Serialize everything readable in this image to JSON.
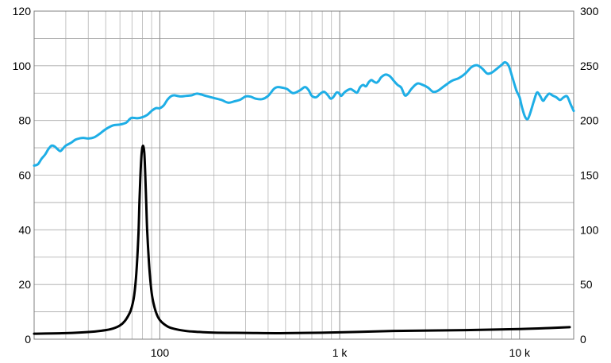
{
  "chart_data": {
    "type": "line",
    "xscale": "log",
    "xlim": [
      20,
      20000
    ],
    "ylim_left": [
      0,
      120
    ],
    "ylim_right": [
      0,
      300
    ],
    "grid": true,
    "legend": "none",
    "yticks_left": [
      {
        "value": 0,
        "label": "0"
      },
      {
        "value": 20,
        "label": "20"
      },
      {
        "value": 40,
        "label": "40"
      },
      {
        "value": 60,
        "label": "60"
      },
      {
        "value": 80,
        "label": "80"
      },
      {
        "value": 100,
        "label": "100"
      },
      {
        "value": 120,
        "label": "120"
      }
    ],
    "yticks_right": [
      {
        "value": 0,
        "label": "0"
      },
      {
        "value": 50,
        "label": "50"
      },
      {
        "value": 100,
        "label": "100"
      },
      {
        "value": 150,
        "label": "150"
      },
      {
        "value": 200,
        "label": "200"
      },
      {
        "value": 250,
        "label": "250"
      },
      {
        "value": 300,
        "label": "300"
      }
    ],
    "xticks": [
      {
        "value": 100,
        "label": "100"
      },
      {
        "value": 1000,
        "label": "1 k"
      },
      {
        "value": 10000,
        "label": "10 k"
      }
    ],
    "series": [
      {
        "axis": "left",
        "color": "#1eaee6",
        "points": [
          [
            20,
            63.5
          ],
          [
            21,
            64
          ],
          [
            22,
            66
          ],
          [
            23,
            67.5
          ],
          [
            24,
            69.5
          ],
          [
            25,
            70.8
          ],
          [
            26,
            70.5
          ],
          [
            27,
            69.5
          ],
          [
            28,
            68.8
          ],
          [
            29,
            69.8
          ],
          [
            30,
            70.8
          ],
          [
            32,
            71.8
          ],
          [
            34,
            73
          ],
          [
            36,
            73.5
          ],
          [
            38,
            73.6
          ],
          [
            40,
            73.4
          ],
          [
            43,
            73.8
          ],
          [
            46,
            75
          ],
          [
            50,
            76.8
          ],
          [
            55,
            78.2
          ],
          [
            60,
            78.5
          ],
          [
            65,
            79.2
          ],
          [
            68,
            80.5
          ],
          [
            70,
            81
          ],
          [
            75,
            80.8
          ],
          [
            80,
            81.2
          ],
          [
            85,
            82
          ],
          [
            90,
            83.5
          ],
          [
            95,
            84.5
          ],
          [
            100,
            84.5
          ],
          [
            105,
            85.5
          ],
          [
            110,
            87.5
          ],
          [
            115,
            88.8
          ],
          [
            120,
            89.2
          ],
          [
            130,
            88.8
          ],
          [
            140,
            89
          ],
          [
            150,
            89.2
          ],
          [
            160,
            89.8
          ],
          [
            170,
            89.5
          ],
          [
            180,
            89
          ],
          [
            200,
            88.2
          ],
          [
            220,
            87.5
          ],
          [
            240,
            86.5
          ],
          [
            260,
            87
          ],
          [
            280,
            87.6
          ],
          [
            300,
            88.8
          ],
          [
            320,
            88.7
          ],
          [
            340,
            88
          ],
          [
            370,
            87.8
          ],
          [
            400,
            89
          ],
          [
            430,
            91.5
          ],
          [
            450,
            92.2
          ],
          [
            480,
            92
          ],
          [
            510,
            91.5
          ],
          [
            550,
            90
          ],
          [
            600,
            91
          ],
          [
            640,
            92.2
          ],
          [
            670,
            91.2
          ],
          [
            700,
            89
          ],
          [
            740,
            88.5
          ],
          [
            780,
            89.8
          ],
          [
            820,
            90.5
          ],
          [
            860,
            89.2
          ],
          [
            890,
            88
          ],
          [
            920,
            88.5
          ],
          [
            960,
            90.2
          ],
          [
            990,
            90
          ],
          [
            1020,
            89
          ],
          [
            1060,
            90.2
          ],
          [
            1100,
            91
          ],
          [
            1150,
            91.5
          ],
          [
            1200,
            90.8
          ],
          [
            1250,
            90.2
          ],
          [
            1300,
            92.2
          ],
          [
            1350,
            93
          ],
          [
            1400,
            92.5
          ],
          [
            1450,
            94
          ],
          [
            1500,
            94.8
          ],
          [
            1550,
            94.2
          ],
          [
            1600,
            93.8
          ],
          [
            1650,
            94.5
          ],
          [
            1700,
            95.8
          ],
          [
            1800,
            96.8
          ],
          [
            1900,
            96.2
          ],
          [
            2000,
            94.5
          ],
          [
            2100,
            93
          ],
          [
            2200,
            92
          ],
          [
            2300,
            89.2
          ],
          [
            2400,
            89.8
          ],
          [
            2500,
            91.5
          ],
          [
            2700,
            93.5
          ],
          [
            2900,
            93
          ],
          [
            3100,
            92
          ],
          [
            3300,
            90.5
          ],
          [
            3500,
            90.8
          ],
          [
            3800,
            92.5
          ],
          [
            4200,
            94.5
          ],
          [
            4600,
            95.5
          ],
          [
            5000,
            97.2
          ],
          [
            5400,
            99.5
          ],
          [
            5800,
            100.2
          ],
          [
            6200,
            99
          ],
          [
            6600,
            97.2
          ],
          [
            7000,
            97.5
          ],
          [
            7500,
            99
          ],
          [
            8000,
            100.5
          ],
          [
            8300,
            101.3
          ],
          [
            8700,
            100
          ],
          [
            9100,
            96
          ],
          [
            9600,
            91
          ],
          [
            10000,
            88.5
          ],
          [
            10300,
            85
          ],
          [
            10700,
            81.5
          ],
          [
            11100,
            80.5
          ],
          [
            11500,
            83
          ],
          [
            12000,
            87
          ],
          [
            12500,
            90.2
          ],
          [
            13000,
            89
          ],
          [
            13500,
            87.2
          ],
          [
            14000,
            88.5
          ],
          [
            14600,
            89.8
          ],
          [
            15200,
            89.2
          ],
          [
            16000,
            88.5
          ],
          [
            16800,
            87.5
          ],
          [
            17600,
            88.5
          ],
          [
            18400,
            88.8
          ],
          [
            19200,
            86
          ],
          [
            20000,
            83.5
          ]
        ]
      },
      {
        "axis": "left",
        "color": "#000000",
        "points": [
          [
            20,
            2
          ],
          [
            30,
            2.2
          ],
          [
            40,
            2.6
          ],
          [
            50,
            3.3
          ],
          [
            55,
            3.9
          ],
          [
            60,
            5
          ],
          [
            64,
            6.7
          ],
          [
            68,
            9.6
          ],
          [
            70,
            12
          ],
          [
            72,
            16
          ],
          [
            74,
            24
          ],
          [
            76,
            38
          ],
          [
            77,
            50
          ],
          [
            78,
            60
          ],
          [
            79,
            67
          ],
          [
            80,
            70.2
          ],
          [
            81,
            70.5
          ],
          [
            82,
            68
          ],
          [
            83,
            60
          ],
          [
            84,
            50
          ],
          [
            85,
            40
          ],
          [
            87,
            28
          ],
          [
            89,
            20
          ],
          [
            91,
            15
          ],
          [
            95,
            10
          ],
          [
            100,
            7
          ],
          [
            110,
            4.7
          ],
          [
            120,
            3.8
          ],
          [
            140,
            3
          ],
          [
            160,
            2.7
          ],
          [
            200,
            2.4
          ],
          [
            300,
            2.3
          ],
          [
            500,
            2.2
          ],
          [
            1000,
            2.5
          ],
          [
            2000,
            3
          ],
          [
            5000,
            3.3
          ],
          [
            10000,
            3.7
          ],
          [
            15000,
            4.1
          ],
          [
            19000,
            4.4
          ]
        ]
      }
    ]
  }
}
